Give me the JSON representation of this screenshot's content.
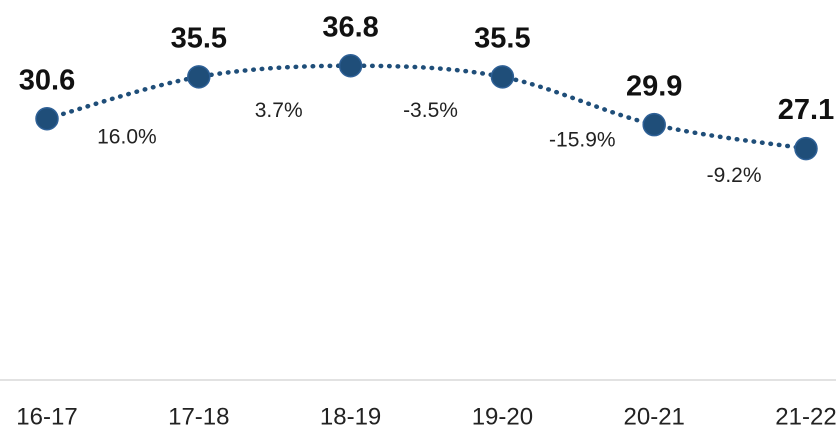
{
  "chart_data": {
    "type": "line",
    "categories": [
      "16-17",
      "17-18",
      "18-19",
      "19-20",
      "20-21",
      "21-22"
    ],
    "values": [
      30.6,
      35.5,
      36.8,
      35.5,
      29.9,
      27.1
    ],
    "changes": [
      16.0,
      3.7,
      -3.5,
      -15.9,
      -9.2
    ],
    "change_labels": [
      "16.0%",
      "3.7%",
      "-3.5%",
      "-15.9%",
      "-9.2%"
    ],
    "color": "#1f4e79",
    "ylim": [
      0,
      44.5
    ]
  }
}
